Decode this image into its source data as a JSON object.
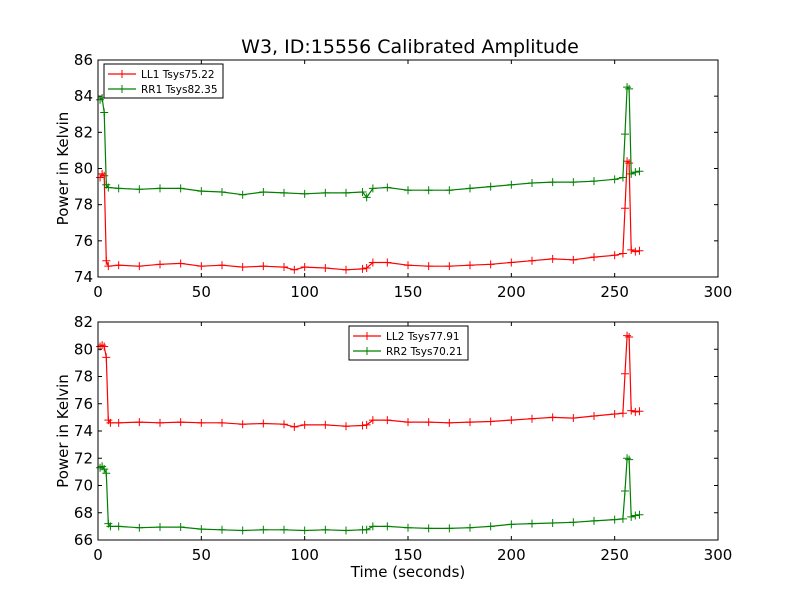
{
  "figure": {
    "title": "W3, ID:15556 Calibrated Amplitude"
  },
  "chart_data": [
    {
      "type": "line",
      "title": "W3, ID:15556 Calibrated Amplitude",
      "xlabel": "",
      "ylabel": "Power in Kelvin",
      "xlim": [
        0,
        300
      ],
      "ylim": [
        74,
        86
      ],
      "xticks": [
        "0",
        "50",
        "100",
        "150",
        "200",
        "250",
        "300"
      ],
      "yticks": [
        "74",
        "76",
        "78",
        "80",
        "82",
        "84",
        "86"
      ],
      "grid": false,
      "legend": "top-left",
      "series": [
        {
          "name": "LL1 Tsys75.22",
          "color": "#ff0000",
          "points": [
            [
              1,
              79.5
            ],
            [
              2,
              79.7
            ],
            [
              3,
              79.6
            ],
            [
              4,
              74.9
            ],
            [
              5,
              74.6
            ],
            [
              10,
              74.65
            ],
            [
              20,
              74.6
            ],
            [
              30,
              74.7
            ],
            [
              40,
              74.75
            ],
            [
              50,
              74.6
            ],
            [
              60,
              74.65
            ],
            [
              70,
              74.55
            ],
            [
              80,
              74.6
            ],
            [
              90,
              74.55
            ],
            [
              95,
              74.4
            ],
            [
              100,
              74.55
            ],
            [
              110,
              74.5
            ],
            [
              120,
              74.4
            ],
            [
              128,
              74.45
            ],
            [
              130,
              74.5
            ],
            [
              133,
              74.8
            ],
            [
              140,
              74.8
            ],
            [
              150,
              74.65
            ],
            [
              160,
              74.6
            ],
            [
              170,
              74.6
            ],
            [
              180,
              74.65
            ],
            [
              190,
              74.7
            ],
            [
              200,
              74.8
            ],
            [
              210,
              74.9
            ],
            [
              220,
              75.0
            ],
            [
              230,
              74.95
            ],
            [
              240,
              75.1
            ],
            [
              250,
              75.2
            ],
            [
              254,
              75.3
            ],
            [
              255,
              77.8
            ],
            [
              256,
              80.4
            ],
            [
              257,
              80.3
            ],
            [
              258,
              75.5
            ],
            [
              260,
              75.4
            ],
            [
              262,
              75.45
            ]
          ]
        },
        {
          "name": "RR1 Tsys82.35",
          "color": "#008000",
          "points": [
            [
              1,
              83.8
            ],
            [
              2,
              83.9
            ],
            [
              3,
              83.1
            ],
            [
              4,
              79.1
            ],
            [
              5,
              78.95
            ],
            [
              10,
              78.9
            ],
            [
              20,
              78.85
            ],
            [
              30,
              78.9
            ],
            [
              40,
              78.9
            ],
            [
              50,
              78.75
            ],
            [
              60,
              78.7
            ],
            [
              70,
              78.55
            ],
            [
              80,
              78.7
            ],
            [
              90,
              78.65
            ],
            [
              100,
              78.6
            ],
            [
              110,
              78.65
            ],
            [
              120,
              78.65
            ],
            [
              128,
              78.7
            ],
            [
              130,
              78.4
            ],
            [
              133,
              78.9
            ],
            [
              140,
              78.95
            ],
            [
              150,
              78.8
            ],
            [
              160,
              78.8
            ],
            [
              170,
              78.8
            ],
            [
              180,
              78.9
            ],
            [
              190,
              79.0
            ],
            [
              200,
              79.1
            ],
            [
              210,
              79.2
            ],
            [
              220,
              79.25
            ],
            [
              230,
              79.25
            ],
            [
              240,
              79.3
            ],
            [
              250,
              79.4
            ],
            [
              254,
              79.5
            ],
            [
              255,
              81.9
            ],
            [
              256,
              84.5
            ],
            [
              257,
              84.4
            ],
            [
              258,
              79.7
            ],
            [
              260,
              79.8
            ],
            [
              262,
              79.85
            ]
          ]
        }
      ]
    },
    {
      "type": "line",
      "title": "",
      "xlabel": "Time (seconds)",
      "ylabel": "Power in Kelvin",
      "xlim": [
        0,
        300
      ],
      "ylim": [
        66,
        82
      ],
      "xticks": [
        "0",
        "50",
        "100",
        "150",
        "200",
        "250",
        "300"
      ],
      "yticks": [
        "66",
        "68",
        "70",
        "72",
        "74",
        "76",
        "78",
        "80",
        "82"
      ],
      "grid": false,
      "legend": "top-center",
      "series": [
        {
          "name": "LL2 Tsys77.91",
          "color": "#ff0000",
          "points": [
            [
              1,
              80.2
            ],
            [
              2,
              80.3
            ],
            [
              3,
              80.2
            ],
            [
              4,
              79.4
            ],
            [
              5,
              74.8
            ],
            [
              6,
              74.6
            ],
            [
              10,
              74.6
            ],
            [
              20,
              74.65
            ],
            [
              30,
              74.6
            ],
            [
              40,
              74.65
            ],
            [
              50,
              74.6
            ],
            [
              60,
              74.6
            ],
            [
              70,
              74.5
            ],
            [
              80,
              74.55
            ],
            [
              90,
              74.5
            ],
            [
              95,
              74.3
            ],
            [
              100,
              74.45
            ],
            [
              110,
              74.45
            ],
            [
              120,
              74.35
            ],
            [
              128,
              74.4
            ],
            [
              130,
              74.45
            ],
            [
              133,
              74.8
            ],
            [
              140,
              74.8
            ],
            [
              150,
              74.65
            ],
            [
              160,
              74.65
            ],
            [
              170,
              74.6
            ],
            [
              180,
              74.65
            ],
            [
              190,
              74.7
            ],
            [
              200,
              74.8
            ],
            [
              210,
              74.9
            ],
            [
              220,
              75.0
            ],
            [
              230,
              74.95
            ],
            [
              240,
              75.1
            ],
            [
              250,
              75.25
            ],
            [
              254,
              75.3
            ],
            [
              255,
              78.2
            ],
            [
              256,
              81.0
            ],
            [
              257,
              80.9
            ],
            [
              258,
              75.5
            ],
            [
              260,
              75.4
            ],
            [
              262,
              75.45
            ]
          ]
        },
        {
          "name": "RR2 Tsys70.21",
          "color": "#008000",
          "points": [
            [
              1,
              71.3
            ],
            [
              2,
              71.4
            ],
            [
              3,
              71.2
            ],
            [
              4,
              70.9
            ],
            [
              5,
              67.2
            ],
            [
              6,
              67.0
            ],
            [
              10,
              67.0
            ],
            [
              20,
              66.9
            ],
            [
              30,
              66.95
            ],
            [
              40,
              66.95
            ],
            [
              50,
              66.8
            ],
            [
              60,
              66.75
            ],
            [
              70,
              66.7
            ],
            [
              80,
              66.75
            ],
            [
              90,
              66.75
            ],
            [
              100,
              66.7
            ],
            [
              110,
              66.75
            ],
            [
              120,
              66.7
            ],
            [
              128,
              66.75
            ],
            [
              130,
              66.75
            ],
            [
              133,
              67.0
            ],
            [
              140,
              67.0
            ],
            [
              150,
              66.9
            ],
            [
              160,
              66.85
            ],
            [
              170,
              66.85
            ],
            [
              180,
              66.9
            ],
            [
              190,
              67.0
            ],
            [
              200,
              67.15
            ],
            [
              210,
              67.2
            ],
            [
              220,
              67.25
            ],
            [
              230,
              67.3
            ],
            [
              240,
              67.4
            ],
            [
              250,
              67.5
            ],
            [
              254,
              67.55
            ],
            [
              255,
              69.6
            ],
            [
              256,
              72.0
            ],
            [
              257,
              71.9
            ],
            [
              258,
              67.7
            ],
            [
              260,
              67.8
            ],
            [
              262,
              67.85
            ]
          ]
        }
      ]
    }
  ]
}
